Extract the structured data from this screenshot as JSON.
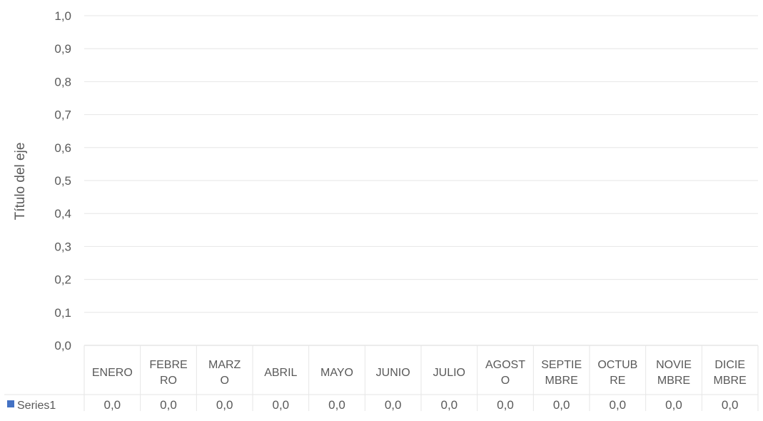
{
  "chart_data": {
    "type": "bar",
    "ylabel": "Título del eje",
    "xlabel": "",
    "title": "",
    "categories": [
      [
        "ENERO"
      ],
      [
        "FEBRE",
        "RO"
      ],
      [
        "MARZ",
        "O"
      ],
      [
        "ABRIL"
      ],
      [
        "MAYO"
      ],
      [
        "JUNIO"
      ],
      [
        "JULIO"
      ],
      [
        "AGOST",
        "O"
      ],
      [
        "SEPTIE",
        "MBRE"
      ],
      [
        "OCTUB",
        "RE"
      ],
      [
        "NOVIE",
        "MBRE"
      ],
      [
        "DICIE",
        "MBRE"
      ]
    ],
    "series": [
      {
        "name": "Series1",
        "values": [
          0,
          0,
          0,
          0,
          0,
          0,
          0,
          0,
          0,
          0,
          0,
          0
        ],
        "value_labels": [
          "0,0",
          "0,0",
          "0,0",
          "0,0",
          "0,0",
          "0,0",
          "0,0",
          "0,0",
          "0,0",
          "0,0",
          "0,0",
          "0,0"
        ],
        "color": "#4472c4"
      }
    ],
    "y_ticks": [
      "0,0",
      "0,1",
      "0,2",
      "0,3",
      "0,4",
      "0,5",
      "0,6",
      "0,7",
      "0,8",
      "0,9",
      "1,0"
    ],
    "ylim": [
      0,
      1
    ],
    "grid": true,
    "data_table": true,
    "legend": "data-table"
  }
}
